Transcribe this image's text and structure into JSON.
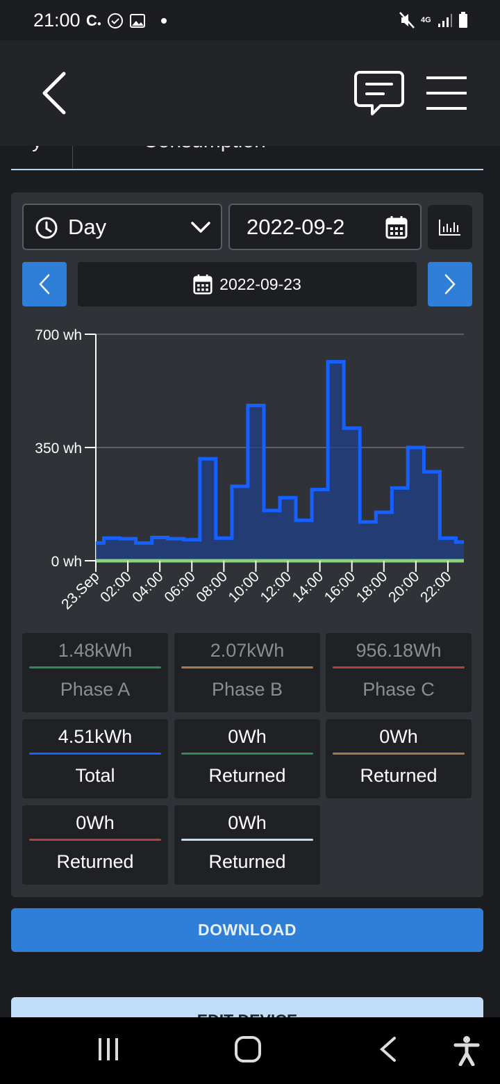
{
  "status_bar": {
    "time": "21:00",
    "network": "4G"
  },
  "header": {
    "back_icon": "chevron-left-icon",
    "chat_icon": "message-icon",
    "menu_icon": "hamburger-menu-icon"
  },
  "tabs": {
    "left_text": "y",
    "consumption_label": "Consumption"
  },
  "controls": {
    "period_value": "Day",
    "date_value": "2022-09-2",
    "selected_date": "2022-09-23"
  },
  "chart_data": {
    "type": "area",
    "step": true,
    "title": "",
    "xlabel": "",
    "ylabel": "",
    "ylim": [
      0,
      700
    ],
    "yticks": [
      "0 wh",
      "350 wh",
      "700 wh"
    ],
    "xticks": [
      "23.Sep",
      "02:00",
      "04:00",
      "06:00",
      "08:00",
      "10:00",
      "12:00",
      "14:00",
      "16:00",
      "18:00",
      "20:00",
      "22:00"
    ],
    "x_hours": [
      0,
      1,
      2,
      3,
      4,
      5,
      6,
      7,
      8,
      9,
      10,
      11,
      12,
      13,
      14,
      15,
      16,
      17,
      18,
      19,
      20,
      21,
      22,
      23
    ],
    "series": [
      {
        "color": "#1560ff",
        "values": [
          55,
          70,
          68,
          55,
          72,
          68,
          65,
          315,
          70,
          230,
          480,
          155,
          195,
          125,
          220,
          615,
          410,
          120,
          150,
          225,
          350,
          275,
          70,
          58
        ]
      },
      {
        "color": "#8ad17b",
        "values": [
          0,
          0,
          0,
          0,
          0,
          0,
          0,
          0,
          0,
          0,
          0,
          0,
          0,
          0,
          0,
          0,
          0,
          0,
          0,
          0,
          0,
          0,
          0,
          0
        ]
      }
    ],
    "grid": true
  },
  "stats": [
    {
      "value": "1.48kWh",
      "label": "Phase A",
      "color": "#2e8b57",
      "style": "muted"
    },
    {
      "value": "2.07kWh",
      "label": "Phase B",
      "color": "#a8794a",
      "style": "muted"
    },
    {
      "value": "956.18Wh",
      "label": "Phase C",
      "color": "#b2413f",
      "style": "muted"
    },
    {
      "value": "4.51kWh",
      "label": "Total",
      "color": "#1560ff",
      "style": "bright"
    },
    {
      "value": "0Wh",
      "label": "Returned",
      "color": "#2e8b57",
      "style": "bright"
    },
    {
      "value": "0Wh",
      "label": "Returned",
      "color": "#a8794a",
      "style": "bright"
    },
    {
      "value": "0Wh",
      "label": "Returned",
      "color": "#b2413f",
      "style": "bright"
    },
    {
      "value": "0Wh",
      "label": "Returned",
      "color": "#c0dcf6",
      "style": "bright"
    }
  ],
  "buttons": {
    "download": "DOWNLOAD",
    "edit_device": "EDIT DEVICE"
  }
}
